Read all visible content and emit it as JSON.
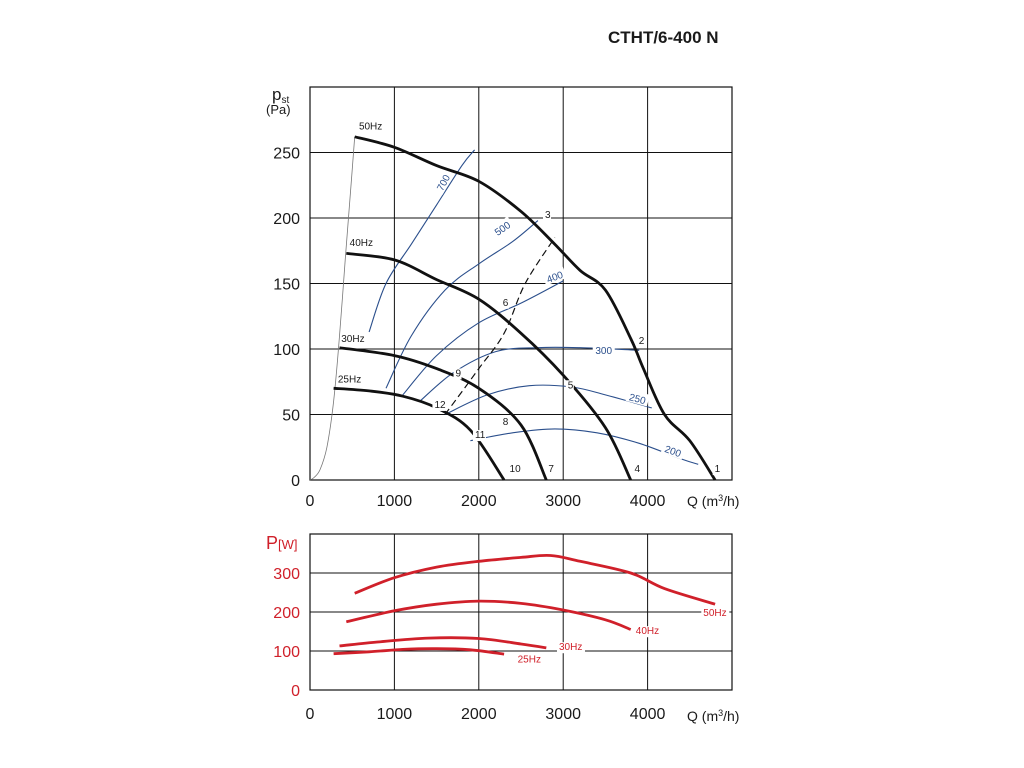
{
  "title": "CTHT/6-400 N",
  "chart_data": [
    {
      "type": "line",
      "ylabel_main": "p",
      "ylabel_sub": "st",
      "yunit": "(Pa)",
      "xlabel_prefix": "Q (m",
      "xlabel_sup": "3",
      "xlabel_suffix": "/h)",
      "xlim": [
        0,
        5000
      ],
      "ylim": [
        0,
        300
      ],
      "xticks": [
        "0",
        "1000",
        "2000",
        "3000",
        "4000"
      ],
      "yticks": [
        "0",
        "50",
        "100",
        "150",
        "200",
        "250"
      ],
      "system_curve": [
        [
          0,
          0
        ],
        [
          50,
          2
        ],
        [
          120,
          8
        ],
        [
          200,
          25
        ],
        [
          280,
          60
        ],
        [
          350,
          110
        ],
        [
          420,
          170
        ],
        [
          480,
          220
        ],
        [
          530,
          262
        ]
      ],
      "speed_curves": [
        {
          "name": "50Hz",
          "points": [
            [
              530,
              262
            ],
            [
              1000,
              254
            ],
            [
              1500,
              240
            ],
            [
              2000,
              228
            ],
            [
              2500,
              205
            ],
            [
              2900,
              180
            ],
            [
              3200,
              160
            ],
            [
              3500,
              145
            ],
            [
              3800,
              108
            ],
            [
              3950,
              85
            ],
            [
              4200,
              50
            ],
            [
              4500,
              30
            ],
            [
              4800,
              0
            ]
          ]
        },
        {
          "name": "40Hz",
          "points": [
            [
              430,
              173
            ],
            [
              1000,
              168
            ],
            [
              1500,
              153
            ],
            [
              2000,
              138
            ],
            [
              2500,
              112
            ],
            [
              3000,
              80
            ],
            [
              3500,
              40
            ],
            [
              3800,
              0
            ]
          ]
        },
        {
          "name": "30Hz",
          "points": [
            [
              350,
              101
            ],
            [
              1000,
              95
            ],
            [
              1500,
              85
            ],
            [
              2000,
              70
            ],
            [
              2500,
              42
            ],
            [
              2800,
              0
            ]
          ]
        },
        {
          "name": "25Hz",
          "points": [
            [
              280,
              70
            ],
            [
              700,
              68
            ],
            [
              1100,
              64
            ],
            [
              1500,
              55
            ],
            [
              1900,
              38
            ],
            [
              2300,
              0
            ]
          ]
        }
      ],
      "speed_labels": [
        "50Hz",
        "40Hz",
        "30Hz",
        "25Hz"
      ],
      "rpm_curves": [
        {
          "name": "700",
          "points": [
            [
              700,
              113
            ],
            [
              900,
              150
            ],
            [
              1200,
              180
            ],
            [
              1500,
              210
            ],
            [
              1800,
              240
            ],
            [
              1950,
              252
            ]
          ]
        },
        {
          "name": "500",
          "points": [
            [
              900,
              70
            ],
            [
              1200,
              110
            ],
            [
              1600,
              145
            ],
            [
              2000,
              165
            ],
            [
              2400,
              182
            ],
            [
              2700,
              198
            ]
          ]
        },
        {
          "name": "400",
          "points": [
            [
              1100,
              65
            ],
            [
              1500,
              95
            ],
            [
              2000,
              120
            ],
            [
              2500,
              135
            ],
            [
              3000,
              152
            ]
          ]
        },
        {
          "name": "300",
          "points": [
            [
              1300,
              60
            ],
            [
              1700,
              82
            ],
            [
              2200,
              98
            ],
            [
              2700,
              101
            ],
            [
              3200,
              101
            ],
            [
              3900,
              99
            ]
          ]
        },
        {
          "name": "250",
          "points": [
            [
              1600,
              50
            ],
            [
              2100,
              65
            ],
            [
              2600,
              72
            ],
            [
              3100,
              71
            ],
            [
              3500,
              65
            ],
            [
              4050,
              55
            ]
          ]
        },
        {
          "name": "200",
          "points": [
            [
              1900,
              30
            ],
            [
              2400,
              36
            ],
            [
              2900,
              39
            ],
            [
              3400,
              36
            ],
            [
              3900,
              28
            ],
            [
              4400,
              16
            ],
            [
              4600,
              12
            ]
          ]
        }
      ],
      "rpm_labels": [
        "700",
        "500",
        "400",
        "300",
        "250",
        "200"
      ],
      "efficiency_line": [
        [
          1600,
          50
        ],
        [
          2000,
          85
        ],
        [
          2300,
          112
        ],
        [
          2550,
          150
        ],
        [
          2900,
          185
        ]
      ],
      "point_labels": [
        {
          "label": "1",
          "x": 4830,
          "y": 6
        },
        {
          "label": "2",
          "x": 3930,
          "y": 104
        },
        {
          "label": "3",
          "x": 2820,
          "y": 200
        },
        {
          "label": "4",
          "x": 3880,
          "y": 6
        },
        {
          "label": "5",
          "x": 3090,
          "y": 70
        },
        {
          "label": "6",
          "x": 2320,
          "y": 133
        },
        {
          "label": "7",
          "x": 2860,
          "y": 6
        },
        {
          "label": "8",
          "x": 2320,
          "y": 42
        },
        {
          "label": "9",
          "x": 1760,
          "y": 79
        },
        {
          "label": "10",
          "x": 2400,
          "y": 6
        },
        {
          "label": "11",
          "x": 1990,
          "y": 32
        },
        {
          "label": "12",
          "x": 1510,
          "y": 55
        }
      ]
    },
    {
      "type": "line",
      "ylabel_main": "P",
      "yunit": "[W]",
      "xlabel_prefix": "Q (m",
      "xlabel_sup": "3",
      "xlabel_suffix": "/h)",
      "xlim": [
        0,
        5000
      ],
      "ylim": [
        0,
        400
      ],
      "xticks": [
        "0",
        "1000",
        "2000",
        "3000",
        "4000"
      ],
      "yticks": [
        "0",
        "100",
        "200",
        "300"
      ],
      "series": [
        {
          "name": "50Hz",
          "points": [
            [
              530,
              248
            ],
            [
              1000,
              288
            ],
            [
              1500,
              315
            ],
            [
              2000,
              330
            ],
            [
              2500,
              340
            ],
            [
              2850,
              345
            ],
            [
              3200,
              330
            ],
            [
              3800,
              300
            ],
            [
              4200,
              260
            ],
            [
              4800,
              220
            ]
          ]
        },
        {
          "name": "40Hz",
          "points": [
            [
              430,
              175
            ],
            [
              1000,
              203
            ],
            [
              1500,
              220
            ],
            [
              2000,
              228
            ],
            [
              2500,
              222
            ],
            [
              3000,
              205
            ],
            [
              3500,
              180
            ],
            [
              3800,
              155
            ]
          ]
        },
        {
          "name": "30Hz",
          "points": [
            [
              350,
              113
            ],
            [
              800,
              123
            ],
            [
              1400,
              133
            ],
            [
              2000,
              132
            ],
            [
              2500,
              118
            ],
            [
              2800,
              108
            ]
          ]
        },
        {
          "name": "25Hz",
          "points": [
            [
              280,
              93
            ],
            [
              700,
              98
            ],
            [
              1100,
              104
            ],
            [
              1500,
              106
            ],
            [
              1900,
              103
            ],
            [
              2300,
              92
            ]
          ]
        }
      ]
    }
  ]
}
